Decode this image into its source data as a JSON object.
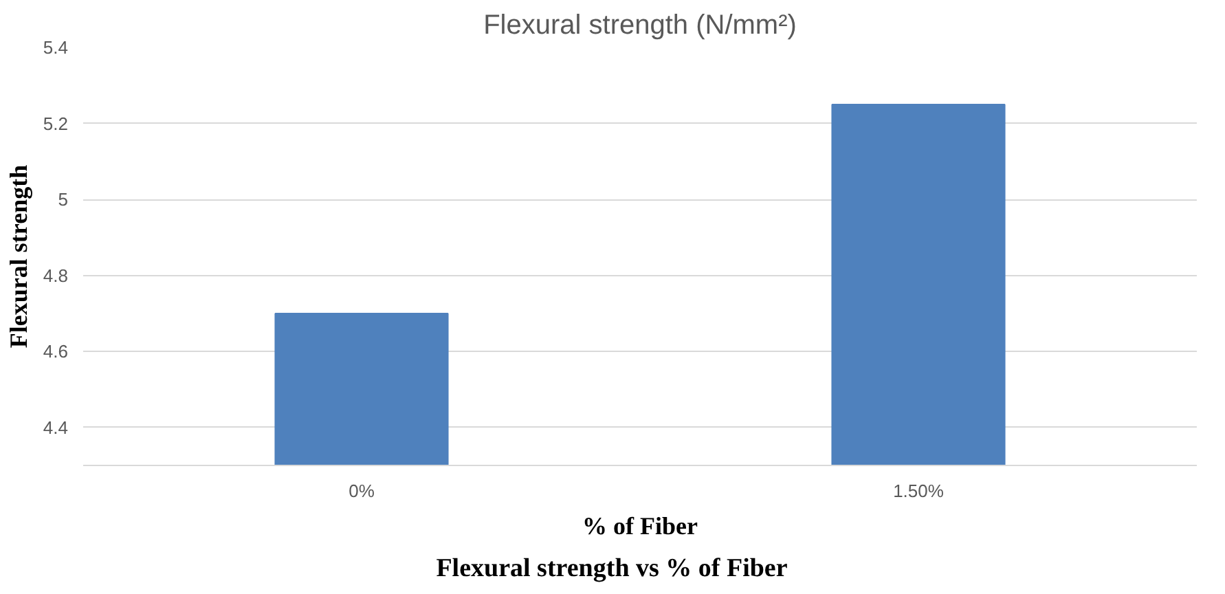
{
  "chart_data": {
    "type": "bar",
    "title": "Flexural strength (N/mm²)",
    "xlabel": "% of Fiber",
    "ylabel": "Flexural strength",
    "categories": [
      "0%",
      "1.50%"
    ],
    "series": [
      {
        "color": "#4f81bd",
        "values": [
          4.7,
          5.25
        ]
      }
    ],
    "ylim": [
      4.3,
      5.4
    ],
    "yticks": [
      4.4,
      4.6,
      4.8,
      {
        "value": 5.0,
        "label": "5"
      },
      5.2,
      5.4
    ],
    "grid": "y",
    "annotations": [
      "Flexural strength vs % of Fiber"
    ]
  }
}
